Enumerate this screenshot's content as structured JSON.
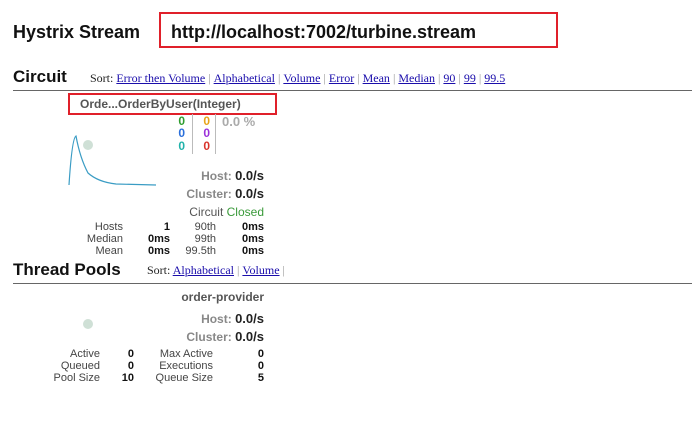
{
  "header": {
    "title": "Hystrix Stream",
    "stream_url": "http://localhost:7002/turbine.stream"
  },
  "circuit_section": {
    "heading": "Circuit",
    "sort_label": "Sort:",
    "sort_options": [
      "Error then Volume",
      "Alphabetical",
      "Volume",
      "Error",
      "Mean",
      "Median",
      "90",
      "99",
      "99.5"
    ]
  },
  "circuit": {
    "name": "Orde...OrderByUser(Integer)",
    "counts_left": [
      "0",
      "0",
      "0"
    ],
    "counts_right": [
      "0",
      "0",
      "0"
    ],
    "error_pct": "0.0 %",
    "host_label": "Host:",
    "host_rate": "0.0/s",
    "cluster_label": "Cluster:",
    "cluster_rate": "0.0/s",
    "circuit_label": "Circuit",
    "circuit_status": "Closed",
    "stats": [
      {
        "label": "Hosts",
        "value": "1",
        "plabel": "90th",
        "pvalue": "0ms"
      },
      {
        "label": "Median",
        "value": "0ms",
        "plabel": "99th",
        "pvalue": "0ms"
      },
      {
        "label": "Mean",
        "value": "0ms",
        "plabel": "99.5th",
        "pvalue": "0ms"
      }
    ],
    "colors": {
      "success": "#2e9d2e",
      "short_circuited": "#2a6fdb",
      "bad_request": "#20b2aa",
      "timeout": "#e8a317",
      "rejected": "#9b30d9",
      "failure": "#d9342b",
      "sparkline": "#3a9cc4"
    }
  },
  "threadpool_section": {
    "heading": "Thread Pools",
    "sort_label": "Sort:",
    "sort_options": [
      "Alphabetical",
      "Volume"
    ]
  },
  "threadpool": {
    "name": "order-provider",
    "host_label": "Host:",
    "host_rate": "0.0/s",
    "cluster_label": "Cluster:",
    "cluster_rate": "0.0/s",
    "stats": [
      {
        "label": "Active",
        "value": "0",
        "label2": "Max Active",
        "value2": "0"
      },
      {
        "label": "Queued",
        "value": "0",
        "label2": "Executions",
        "value2": "0"
      },
      {
        "label": "Pool Size",
        "value": "10",
        "label2": "Queue Size",
        "value2": "5"
      }
    ]
  }
}
